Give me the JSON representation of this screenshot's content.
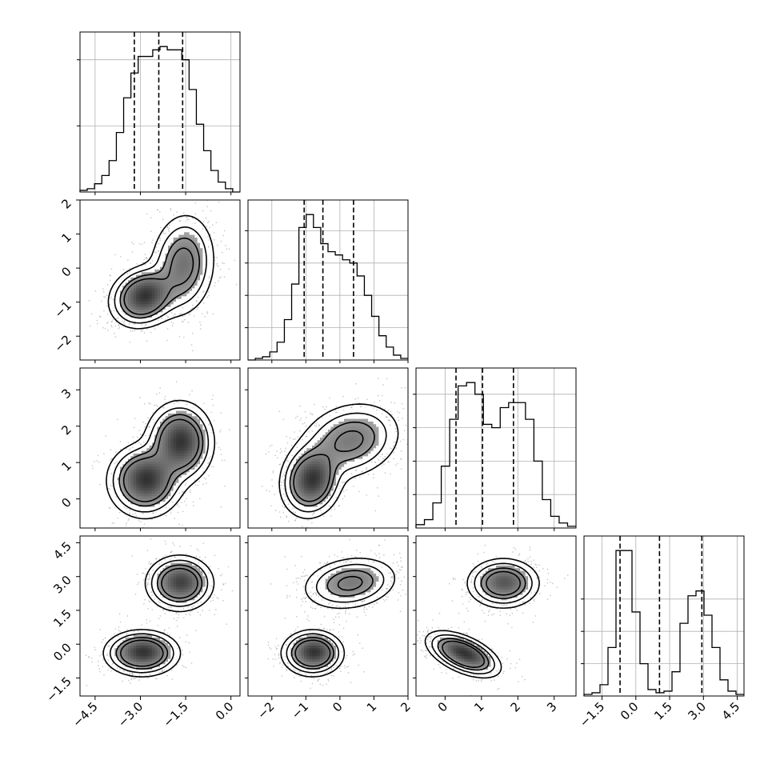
{
  "chart_data": {
    "type": "corner",
    "parameters": 4,
    "axes": [
      {
        "range": [
          -5.0,
          0.3
        ],
        "ticks": [
          -4.5,
          -3.0,
          -1.5,
          0.0
        ],
        "tick_labels": [
          "−4.5",
          "−3.0",
          "−1.5",
          "0.0"
        ]
      },
      {
        "range": [
          -2.7,
          2.0
        ],
        "ticks": [
          -2,
          -1,
          0,
          1,
          2
        ],
        "tick_labels": [
          "−2",
          "−1",
          "0",
          "1",
          "2"
        ]
      },
      {
        "range": [
          -0.8,
          3.6
        ],
        "ticks": [
          0,
          1,
          2,
          3
        ],
        "tick_labels": [
          "0",
          "1",
          "2",
          "3"
        ]
      },
      {
        "range": [
          -2.3,
          4.8
        ],
        "ticks": [
          -1.5,
          0.0,
          1.5,
          3.0,
          4.5
        ],
        "tick_labels": [
          "−1.5",
          "0.0",
          "1.5",
          "3.0",
          "4.5"
        ]
      }
    ],
    "histograms": [
      {
        "param": 0,
        "bins": [
          -5.0,
          0.3
        ],
        "counts": [
          1,
          2,
          5,
          10,
          19,
          36,
          57,
          72,
          82,
          82,
          86,
          88,
          86,
          86,
          80,
          62,
          41,
          25,
          13,
          6,
          2,
          0
        ],
        "quantiles": [
          -3.2,
          -2.39,
          -1.6
        ],
        "y_ticks": [
          40,
          80
        ]
      },
      {
        "param": 1,
        "bins": [
          -2.7,
          2.0
        ],
        "counts": [
          0,
          1,
          2,
          5,
          11,
          25,
          47,
          82,
          90,
          82,
          72,
          67,
          65,
          62,
          60,
          52,
          40,
          27,
          15,
          8,
          3,
          1
        ],
        "quantiles": [
          -1.05,
          -0.5,
          0.4
        ],
        "y_ticks": [
          20,
          40,
          60,
          80
        ]
      },
      {
        "param": 2,
        "bins": [
          -0.8,
          3.6
        ],
        "counts": [
          2,
          5,
          15,
          37,
          65,
          85,
          87,
          80,
          62,
          60,
          72,
          75,
          75,
          65,
          40,
          17,
          7,
          3,
          1
        ],
        "quantiles": [
          0.3,
          1.03,
          1.88
        ],
        "y_ticks": [
          20,
          40,
          60,
          80
        ]
      },
      {
        "param": 3,
        "bins": [
          -2.3,
          4.8
        ],
        "counts": [
          1,
          2,
          7,
          30,
          90,
          90,
          52,
          20,
          4,
          2,
          3,
          15,
          45,
          62,
          65,
          50,
          30,
          10,
          3,
          1
        ],
        "quantiles": [
          -0.7,
          1.05,
          2.93
        ],
        "y_ticks": [
          20,
          40,
          60
        ]
      }
    ],
    "pair_plots": [
      {
        "x": 0,
        "y": 1,
        "modes": [
          {
            "cx": -2.9,
            "cy": -0.85,
            "sx": 0.5,
            "sy": 0.4,
            "rho": 0.15,
            "w": 0.5
          },
          {
            "cx": -1.6,
            "cy": 0.1,
            "sx": 0.5,
            "sy": 0.7,
            "rho": 0.1,
            "w": 0.5
          }
        ]
      },
      {
        "x": 0,
        "y": 2,
        "modes": [
          {
            "cx": -2.85,
            "cy": 0.5,
            "sx": 0.55,
            "sy": 0.45,
            "rho": 0.0,
            "w": 0.5
          },
          {
            "cx": -1.7,
            "cy": 1.55,
            "sx": 0.5,
            "sy": 0.5,
            "rho": 0.0,
            "w": 0.5
          }
        ]
      },
      {
        "x": 1,
        "y": 2,
        "modes": [
          {
            "cx": -0.85,
            "cy": 0.5,
            "sx": 0.4,
            "sy": 0.45,
            "rho": 0.1,
            "w": 0.5
          },
          {
            "cx": 0.3,
            "cy": 1.6,
            "sx": 0.7,
            "sy": 0.5,
            "rho": 0.2,
            "w": 0.5
          }
        ]
      },
      {
        "x": 0,
        "y": 3,
        "modes": [
          {
            "cx": -2.95,
            "cy": -0.4,
            "sx": 0.55,
            "sy": 0.45,
            "rho": 0.0,
            "w": 0.5
          },
          {
            "cx": -1.7,
            "cy": 2.7,
            "sx": 0.5,
            "sy": 0.55,
            "rho": 0.0,
            "w": 0.5
          }
        ]
      },
      {
        "x": 1,
        "y": 3,
        "modes": [
          {
            "cx": -0.8,
            "cy": -0.4,
            "sx": 0.4,
            "sy": 0.45,
            "rho": 0.0,
            "w": 0.5
          },
          {
            "cx": 0.3,
            "cy": 2.7,
            "sx": 0.65,
            "sy": 0.55,
            "rho": 0.2,
            "w": 0.5
          }
        ]
      },
      {
        "x": 2,
        "y": 3,
        "modes": [
          {
            "cx": 0.5,
            "cy": -0.45,
            "sx": 0.45,
            "sy": 0.45,
            "rho": -0.55,
            "w": 0.5
          },
          {
            "cx": 1.6,
            "cy": 2.7,
            "sx": 0.45,
            "sy": 0.5,
            "rho": 0.0,
            "w": 0.5
          }
        ]
      }
    ],
    "contour_levels_sigma": [
      0.5,
      1.0,
      1.5,
      2.0
    ],
    "colors": {
      "line": "#000000",
      "scatter": "#8a8a8a",
      "grid": "#b0b0b0"
    },
    "grid": true,
    "legend": "none"
  }
}
